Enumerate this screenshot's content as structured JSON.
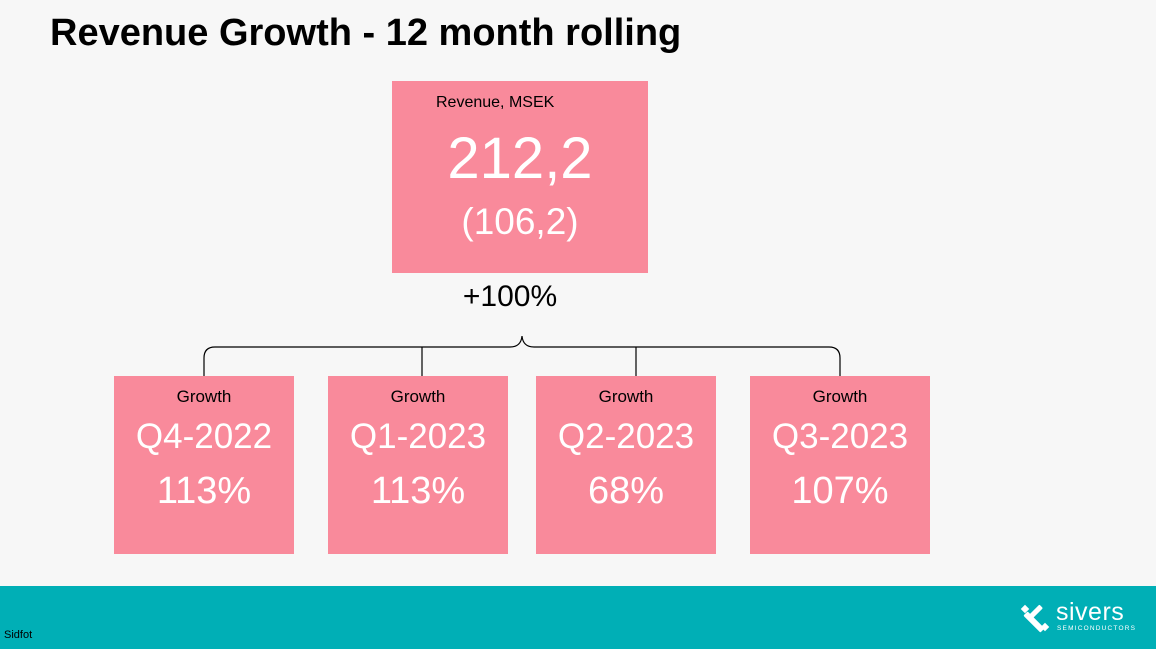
{
  "slide": {
    "title": "Revenue Growth - 12 month rolling"
  },
  "revenue": {
    "label": "Revenue, MSEK",
    "value": "212,2",
    "previous": "(106,2)",
    "change": "+100%"
  },
  "quarters": [
    {
      "label": "Growth",
      "period": "Q4-2022",
      "growth": "113%"
    },
    {
      "label": "Growth",
      "period": "Q1-2023",
      "growth": "113%"
    },
    {
      "label": "Growth",
      "period": "Q2-2023",
      "growth": "68%"
    },
    {
      "label": "Growth",
      "period": "Q3-2023",
      "growth": "107%"
    }
  ],
  "footer": {
    "text": "Sidfot"
  },
  "logo": {
    "name": "sivers",
    "sub": "SEMICONDUCTORS",
    "icon": "sivers-x-logo-icon"
  },
  "colors": {
    "box": "#f98a9b",
    "footer": "#00afb6",
    "background": "#f7f7f7"
  }
}
